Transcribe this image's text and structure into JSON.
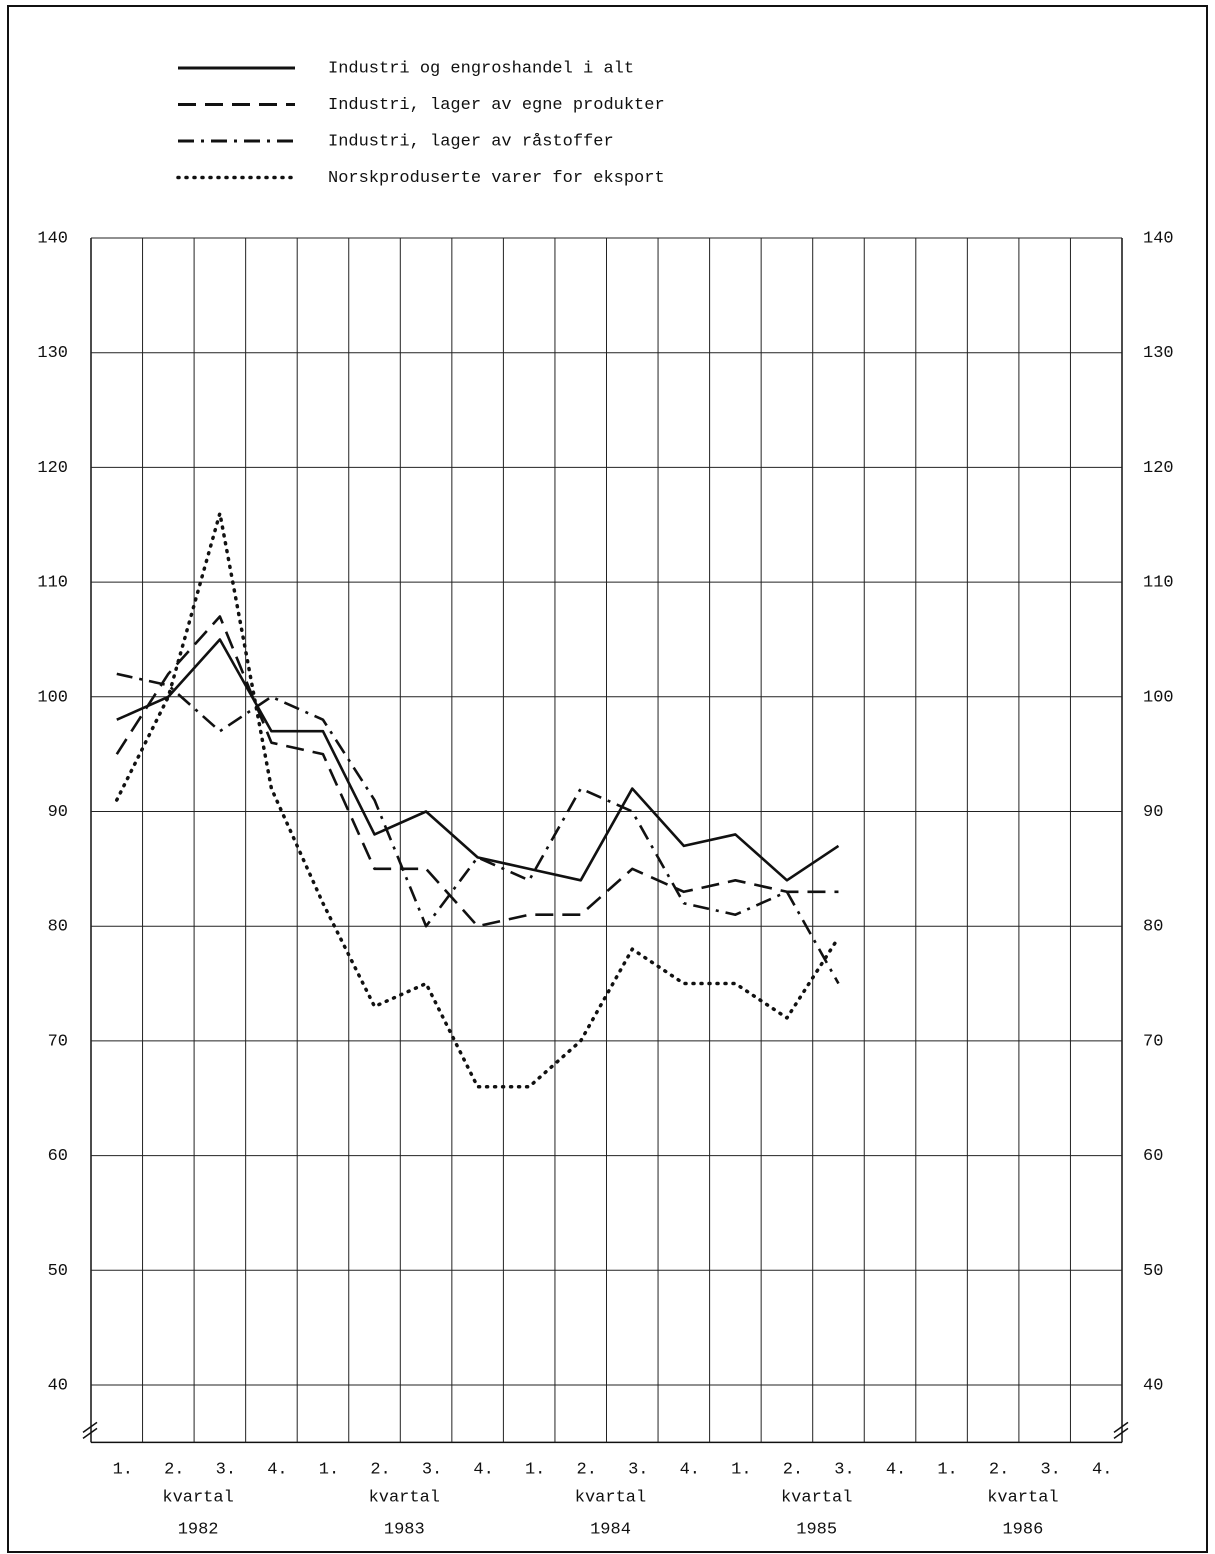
{
  "chart_data": {
    "type": "line",
    "categories": [
      "1.",
      "2.",
      "3.",
      "4.",
      "1.",
      "2.",
      "3.",
      "4.",
      "1.",
      "2.",
      "3.",
      "4.",
      "1.",
      "2.",
      "3.",
      "4.",
      "1.",
      "2.",
      "3.",
      "4."
    ],
    "groups": [
      {
        "label": "kvartal",
        "year": "1982"
      },
      {
        "label": "kvartal",
        "year": "1983"
      },
      {
        "label": "kvartal",
        "year": "1984"
      },
      {
        "label": "kvartal",
        "year": "1985"
      },
      {
        "label": "kvartal",
        "year": "1986"
      }
    ],
    "series": [
      {
        "name": "Industri og engroshandel i alt",
        "color": "#111111",
        "style": "solid",
        "values": [
          98,
          100,
          105,
          97,
          97,
          88,
          90,
          86,
          85,
          84,
          92,
          87,
          88,
          84,
          87,
          null,
          null,
          null,
          null,
          null
        ]
      },
      {
        "name": "Industri, lager av egne produkter",
        "color": "#111111",
        "style": "dashed",
        "values": [
          95,
          102,
          107,
          96,
          95,
          85,
          85,
          80,
          81,
          81,
          85,
          83,
          84,
          83,
          83,
          null,
          null,
          null,
          null,
          null
        ]
      },
      {
        "name": "Industri, lager av råstoffer",
        "color": "#111111",
        "style": "dashdot",
        "values": [
          102,
          101,
          97,
          100,
          98,
          91,
          80,
          86,
          84,
          92,
          90,
          82,
          81,
          83,
          75,
          null,
          null,
          null,
          null,
          null
        ]
      },
      {
        "name": "Norskproduserte varer for eksport",
        "color": "#111111",
        "style": "dotted",
        "values": [
          91,
          100,
          116,
          92,
          82,
          73,
          75,
          66,
          66,
          70,
          78,
          75,
          75,
          72,
          79,
          null,
          null,
          null,
          null,
          null
        ]
      }
    ],
    "ylim": [
      35,
      140
    ],
    "yticks": [
      40,
      50,
      60,
      70,
      80,
      90,
      100,
      110,
      120,
      130,
      140
    ],
    "grid": true
  }
}
